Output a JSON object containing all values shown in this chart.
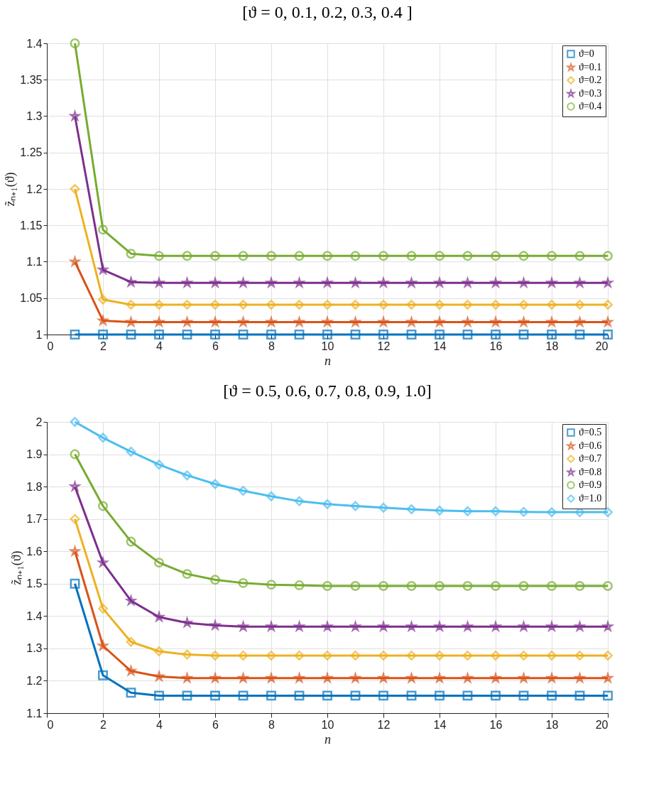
{
  "chart_data": [
    {
      "type": "line",
      "title": "[ϑ = 0, 0.1, 0.2, 0.3, 0.4 ]",
      "xlabel": "n",
      "ylabel": "z̃ₙ₊₁(ϑ)",
      "x": [
        1,
        2,
        3,
        4,
        5,
        6,
        7,
        8,
        9,
        10,
        11,
        12,
        13,
        14,
        15,
        16,
        17,
        18,
        19,
        20
      ],
      "xlim": [
        0,
        20
      ],
      "xticks": [
        0,
        2,
        4,
        6,
        8,
        10,
        12,
        14,
        16,
        18,
        20
      ],
      "ylim": [
        1,
        1.4
      ],
      "yticks": [
        1,
        1.05,
        1.1,
        1.15,
        1.2,
        1.25,
        1.3,
        1.35,
        1.4
      ],
      "grid": true,
      "legend": "top right",
      "line_style": "solid",
      "series": [
        {
          "name": "ϑ=0",
          "color": "#0072bd",
          "marker": "square",
          "values": [
            1,
            1,
            1,
            1,
            1,
            1,
            1,
            1,
            1,
            1,
            1,
            1,
            1,
            1,
            1,
            1,
            1,
            1,
            1,
            1
          ]
        },
        {
          "name": "ϑ=0.1",
          "color": "#d95319",
          "marker": "star",
          "values": [
            1.1,
            1.019,
            1.017,
            1.017,
            1.017,
            1.017,
            1.017,
            1.017,
            1.017,
            1.017,
            1.017,
            1.017,
            1.017,
            1.017,
            1.017,
            1.017,
            1.017,
            1.017,
            1.017,
            1.017
          ]
        },
        {
          "name": "ϑ=0.2",
          "color": "#edb120",
          "marker": "diamond",
          "values": [
            1.2,
            1.048,
            1.041,
            1.041,
            1.041,
            1.041,
            1.041,
            1.041,
            1.041,
            1.041,
            1.041,
            1.041,
            1.041,
            1.041,
            1.041,
            1.041,
            1.041,
            1.041,
            1.041,
            1.041
          ]
        },
        {
          "name": "ϑ=0.3",
          "color": "#7e2f8e",
          "marker": "star",
          "values": [
            1.3,
            1.089,
            1.072,
            1.071,
            1.071,
            1.071,
            1.071,
            1.071,
            1.071,
            1.071,
            1.071,
            1.071,
            1.071,
            1.071,
            1.071,
            1.071,
            1.071,
            1.071,
            1.071,
            1.071
          ]
        },
        {
          "name": "ϑ=0.4",
          "color": "#77ac30",
          "marker": "circle",
          "values": [
            1.4,
            1.144,
            1.111,
            1.108,
            1.108,
            1.108,
            1.108,
            1.108,
            1.108,
            1.108,
            1.108,
            1.108,
            1.108,
            1.108,
            1.108,
            1.108,
            1.108,
            1.108,
            1.108,
            1.108
          ]
        }
      ]
    },
    {
      "type": "line",
      "title": "[ϑ = 0.5, 0.6, 0.7, 0.8, 0.9, 1.0]",
      "xlabel": "n",
      "ylabel": "z̃ₙ₊₁(ϑ)",
      "x": [
        1,
        2,
        3,
        4,
        5,
        6,
        7,
        8,
        9,
        10,
        11,
        12,
        13,
        14,
        15,
        16,
        17,
        18,
        19,
        20
      ],
      "xlim": [
        0,
        20
      ],
      "xticks": [
        0,
        2,
        4,
        6,
        8,
        10,
        12,
        14,
        16,
        18,
        20
      ],
      "ylim": [
        1.1,
        2
      ],
      "yticks": [
        1.1,
        1.2,
        1.3,
        1.4,
        1.5,
        1.6,
        1.7,
        1.8,
        1.9,
        2
      ],
      "grid": true,
      "legend": "top right",
      "line_style": "solid",
      "series": [
        {
          "name": "ϑ=0.5",
          "color": "#0072bd",
          "marker": "square",
          "values": [
            1.5,
            1.217,
            1.163,
            1.154,
            1.154,
            1.154,
            1.154,
            1.154,
            1.154,
            1.154,
            1.154,
            1.154,
            1.154,
            1.154,
            1.154,
            1.154,
            1.154,
            1.154,
            1.154,
            1.154
          ]
        },
        {
          "name": "ϑ=0.6",
          "color": "#d95319",
          "marker": "star",
          "values": [
            1.6,
            1.308,
            1.23,
            1.213,
            1.208,
            1.208,
            1.208,
            1.208,
            1.208,
            1.208,
            1.208,
            1.208,
            1.208,
            1.208,
            1.208,
            1.208,
            1.208,
            1.208,
            1.208,
            1.208
          ]
        },
        {
          "name": "ϑ=0.7",
          "color": "#edb120",
          "marker": "diamond",
          "values": [
            1.7,
            1.423,
            1.32,
            1.291,
            1.281,
            1.278,
            1.278,
            1.278,
            1.278,
            1.278,
            1.278,
            1.278,
            1.278,
            1.278,
            1.278,
            1.278,
            1.278,
            1.278,
            1.278,
            1.278
          ]
        },
        {
          "name": "ϑ=0.8",
          "color": "#7e2f8e",
          "marker": "star",
          "values": [
            1.8,
            1.565,
            1.447,
            1.397,
            1.379,
            1.371,
            1.367,
            1.367,
            1.367,
            1.367,
            1.367,
            1.367,
            1.367,
            1.367,
            1.367,
            1.367,
            1.367,
            1.367,
            1.367,
            1.367
          ]
        },
        {
          "name": "ϑ=0.9",
          "color": "#77ac30",
          "marker": "circle",
          "values": [
            1.9,
            1.74,
            1.63,
            1.565,
            1.53,
            1.512,
            1.502,
            1.497,
            1.495,
            1.493,
            1.493,
            1.493,
            1.493,
            1.493,
            1.493,
            1.493,
            1.493,
            1.493,
            1.493,
            1.493
          ]
        },
        {
          "name": "ϑ=1.0",
          "color": "#4dbeee",
          "marker": "diamond",
          "values": [
            2,
            1.951,
            1.908,
            1.868,
            1.835,
            1.808,
            1.787,
            1.77,
            1.755,
            1.746,
            1.74,
            1.735,
            1.73,
            1.726,
            1.724,
            1.724,
            1.722,
            1.721,
            1.721,
            1.721
          ]
        }
      ]
    }
  ]
}
